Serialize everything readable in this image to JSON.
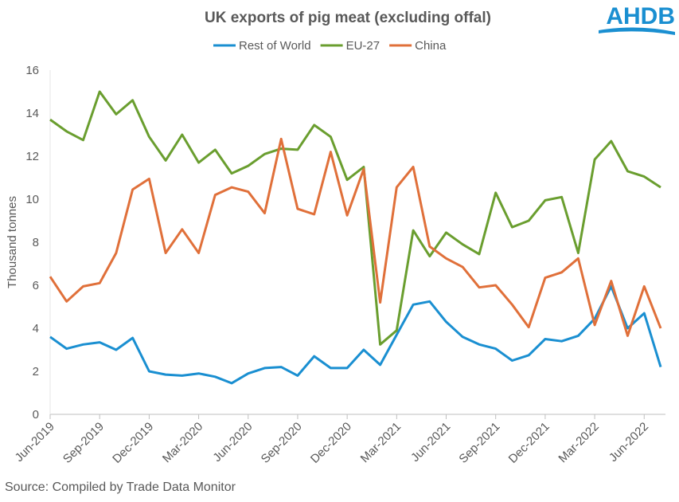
{
  "chart_data": {
    "type": "line",
    "title": "UK exports of pig meat (excluding offal)",
    "logo": "AHDB",
    "y_label": "Thousand tonnes",
    "source": "Source: Compiled  by Trade Data Monitor",
    "categories": [
      "Jun-2019",
      null,
      null,
      "Sep-2019",
      null,
      null,
      "Dec-2019",
      null,
      null,
      "Mar-2020",
      null,
      null,
      "Jun-2020",
      null,
      null,
      "Sep-2020",
      null,
      null,
      "Dec-2020",
      null,
      null,
      "Mar-2021",
      null,
      null,
      "Jun-2021",
      null,
      null,
      "Sep-2021",
      null,
      null,
      "Dec-2021",
      null,
      null,
      "Mar-2022",
      null,
      null,
      "Jun-2022",
      null
    ],
    "series": [
      {
        "name": "Rest of World",
        "color": "#1a8fd1",
        "values": [
          3.6,
          3.05,
          3.25,
          3.35,
          3.0,
          3.55,
          2.0,
          1.85,
          1.8,
          1.9,
          1.75,
          1.45,
          1.9,
          2.15,
          2.2,
          1.8,
          2.7,
          2.15,
          2.15,
          3.0,
          2.3,
          3.7,
          5.1,
          5.25,
          4.3,
          3.6,
          3.25,
          3.05,
          2.5,
          2.75,
          3.5,
          3.4,
          3.65,
          4.45,
          5.95,
          4.0,
          4.7,
          2.2
        ]
      },
      {
        "name": "EU-27",
        "color": "#6a9e2f",
        "values": [
          13.7,
          13.15,
          12.75,
          15.0,
          13.95,
          14.6,
          12.9,
          11.8,
          13.0,
          11.7,
          12.3,
          11.2,
          11.55,
          12.1,
          12.35,
          12.3,
          13.45,
          12.9,
          10.9,
          11.5,
          3.25,
          3.9,
          8.55,
          7.35,
          8.45,
          7.9,
          7.45,
          10.3,
          8.7,
          9.0,
          9.95,
          10.1,
          7.5,
          11.85,
          12.7,
          11.3,
          11.05,
          10.55
        ]
      },
      {
        "name": "China",
        "color": "#e0703a",
        "values": [
          6.4,
          5.25,
          5.95,
          6.1,
          7.5,
          10.45,
          10.95,
          7.5,
          8.6,
          7.5,
          10.2,
          10.55,
          10.35,
          9.35,
          12.8,
          9.55,
          9.3,
          12.2,
          9.25,
          11.4,
          5.2,
          10.55,
          11.5,
          7.8,
          7.25,
          6.85,
          5.9,
          6.0,
          5.1,
          4.05,
          6.35,
          6.6,
          7.25,
          4.15,
          6.2,
          3.65,
          5.95,
          4.0
        ]
      }
    ],
    "ylim": [
      0,
      16
    ],
    "yticks": [
      0,
      2,
      4,
      6,
      8,
      10,
      12,
      14,
      16
    ],
    "grid": false,
    "legend": "top"
  }
}
